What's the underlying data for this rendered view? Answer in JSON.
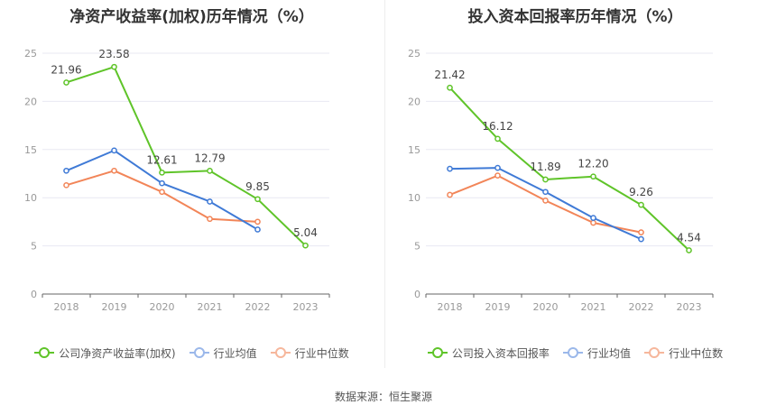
{
  "source_text": "数据来源：恒生聚源",
  "colors": {
    "company": "#5fc429",
    "average": "#3f7ad6",
    "median": "#f28558",
    "axis": "#999999",
    "grid": "#e8e8f2",
    "label": "#444444"
  },
  "chart_data": [
    {
      "type": "line",
      "title": "净资产收益率(加权)历年情况（%）",
      "xlabel": "",
      "ylabel": "",
      "categories": [
        "2018",
        "2019",
        "2020",
        "2021",
        "2022",
        "2023"
      ],
      "ylim": [
        0,
        25
      ],
      "yticks": [
        "0",
        "5",
        "10",
        "15",
        "20",
        "25"
      ],
      "grid": true,
      "legend_position": "bottom",
      "series": [
        {
          "name": "公司净资产收益率(加权)",
          "color_key": "company",
          "values": [
            21.96,
            23.58,
            12.61,
            12.79,
            9.85,
            5.04
          ],
          "labels": [
            "21.96",
            "23.58",
            "12.61",
            "12.79",
            "9.85",
            "5.04"
          ]
        },
        {
          "name": "行业均值",
          "color_key": "average",
          "values": [
            12.8,
            14.9,
            11.5,
            9.6,
            6.7,
            null
          ],
          "labels": []
        },
        {
          "name": "行业中位数",
          "color_key": "median",
          "values": [
            11.3,
            12.8,
            10.6,
            7.8,
            7.5,
            null
          ],
          "labels": []
        }
      ]
    },
    {
      "type": "line",
      "title": "投入资本回报率历年情况（%）",
      "xlabel": "",
      "ylabel": "",
      "categories": [
        "2018",
        "2019",
        "2020",
        "2021",
        "2022",
        "2023"
      ],
      "ylim": [
        0,
        25
      ],
      "yticks": [
        "0",
        "5",
        "10",
        "15",
        "20",
        "25"
      ],
      "grid": true,
      "legend_position": "bottom",
      "series": [
        {
          "name": "公司投入资本回报率",
          "color_key": "company",
          "values": [
            21.42,
            16.12,
            11.89,
            12.2,
            9.26,
            4.54
          ],
          "labels": [
            "21.42",
            "16.12",
            "11.89",
            "12.20",
            "9.26",
            "4.54"
          ]
        },
        {
          "name": "行业均值",
          "color_key": "average",
          "values": [
            13.0,
            13.1,
            10.6,
            7.9,
            5.7,
            null
          ],
          "labels": []
        },
        {
          "name": "行业中位数",
          "color_key": "median",
          "values": [
            10.3,
            12.3,
            9.7,
            7.4,
            6.4,
            null
          ],
          "labels": []
        }
      ]
    }
  ]
}
